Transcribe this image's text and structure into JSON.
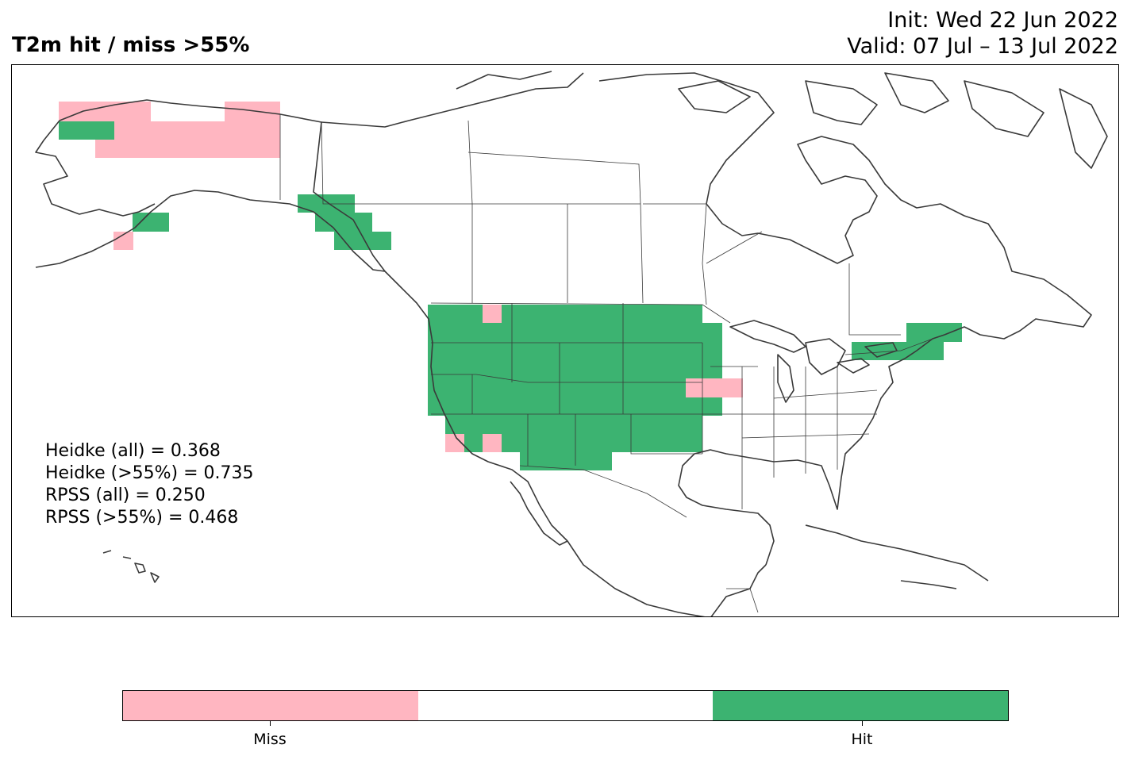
{
  "title": "T2m hit / miss  >55%",
  "init_line": "Init: Wed 22 Jun 2022",
  "valid_line": "Valid: 07 Jul – 13 Jul 2022",
  "stats": [
    "Heidke (all) = 0.368",
    "Heidke (>55%) = 0.735",
    "RPSS (all) = 0.250",
    "RPSS (>55%) = 0.468"
  ],
  "colors": {
    "miss": "#ffb6c1",
    "hit": "#3cb371",
    "none": "#ffffff",
    "coast": "#3a3a3a"
  },
  "colorbar": {
    "labels": [
      "Miss",
      "Hit"
    ]
  },
  "map_cells": {
    "hit_regions": [
      "Alaska west coast",
      "Alaska south coast",
      "Southeast Alaska",
      "US West",
      "US Rockies",
      "US Great Plains",
      "US Southwest",
      "US Northeast"
    ],
    "miss_regions": [
      "Alaska north",
      "Alaska peninsula",
      "Idaho panhandle",
      "California coast",
      "Southern California",
      "Iowa / Illinois border"
    ]
  }
}
